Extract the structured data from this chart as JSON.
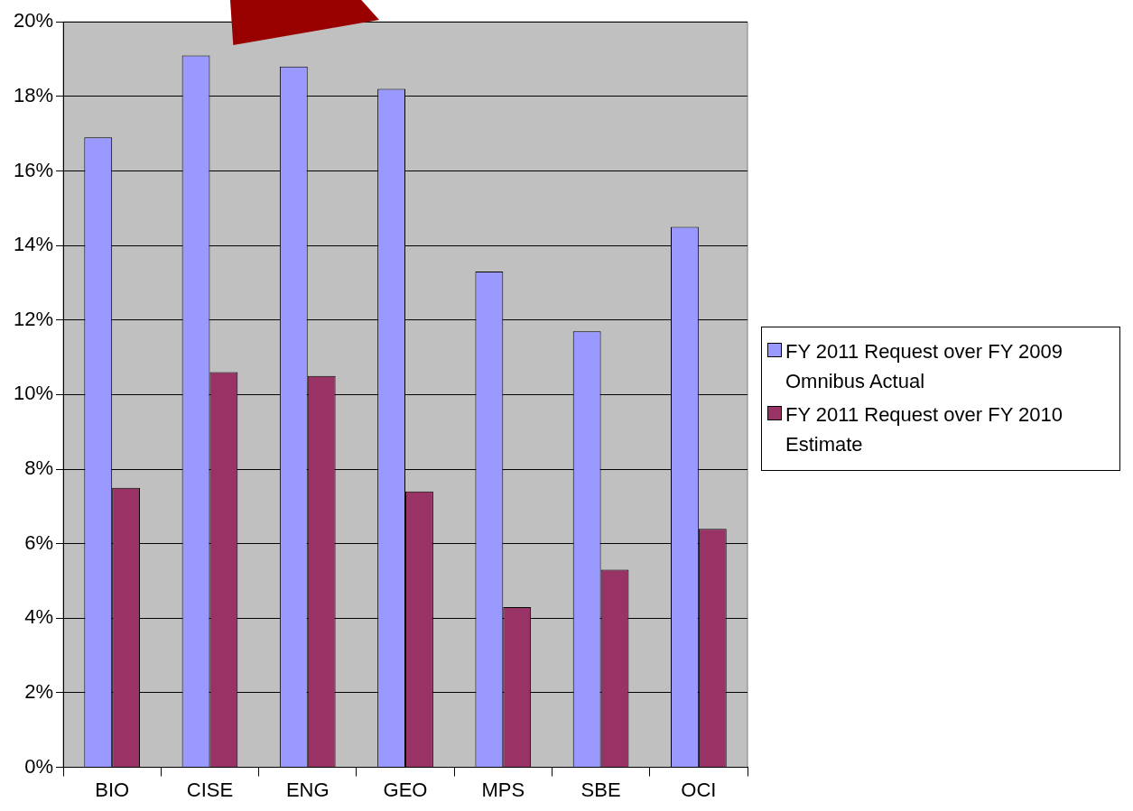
{
  "chart_data": {
    "type": "bar",
    "categories": [
      "BIO",
      "CISE",
      "ENG",
      "GEO",
      "MPS",
      "SBE",
      "OCI"
    ],
    "series": [
      {
        "name": "FY 2011 Request over FY 2009 Omnibus Actual",
        "color": "#9999ff",
        "values": [
          16.9,
          19.1,
          18.8,
          18.2,
          13.3,
          11.7,
          14.5
        ]
      },
      {
        "name": "FY 2011 Request over FY 2010 Estimate",
        "color": "#993366",
        "values": [
          7.5,
          10.6,
          10.5,
          7.4,
          4.3,
          5.3,
          6.4
        ]
      }
    ],
    "ylim": [
      0,
      20
    ],
    "yticks": [
      {
        "value": 0,
        "label": "0%"
      },
      {
        "value": 2,
        "label": "2%"
      },
      {
        "value": 4,
        "label": "4%"
      },
      {
        "value": 6,
        "label": "6%"
      },
      {
        "value": 8,
        "label": "8%"
      },
      {
        "value": 10,
        "label": "10%"
      },
      {
        "value": 12,
        "label": "12%"
      },
      {
        "value": 14,
        "label": "14%"
      },
      {
        "value": 16,
        "label": "16%"
      },
      {
        "value": 18,
        "label": "18%"
      },
      {
        "value": 20,
        "label": "20%"
      }
    ],
    "grid": "y",
    "legend": "right"
  }
}
